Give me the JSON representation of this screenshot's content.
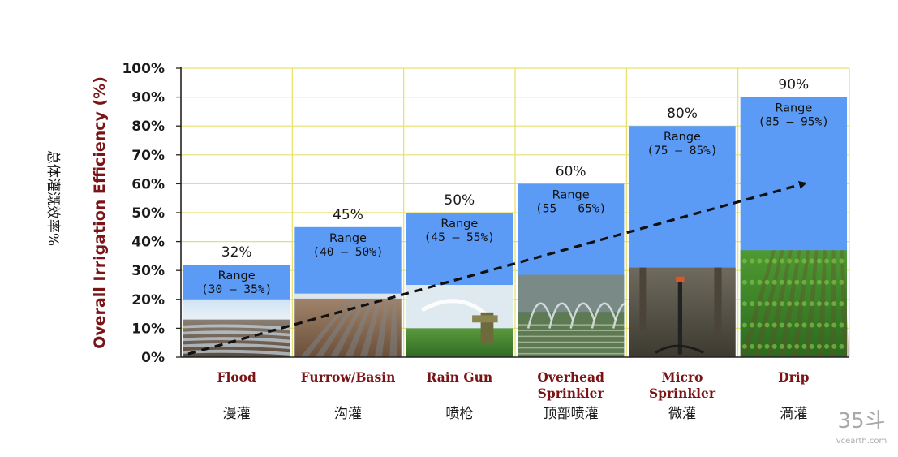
{
  "chart_data": {
    "type": "bar",
    "ylabel": "Overall Irrigation Efficiency (%)",
    "ylabel_cn": "总体灌溉效率%",
    "ylim": [
      0,
      100
    ],
    "yticks": [
      "0%",
      "10%",
      "20%",
      "30%",
      "40%",
      "50%",
      "60%",
      "70%",
      "80%",
      "90%",
      "100%"
    ],
    "grid": true,
    "bar_color": "#5b9bf5",
    "grid_color": "#e6e06a",
    "trend_arrow": "dashed black arrow rising from Flood to Drip",
    "categories": [
      {
        "name": "Flood",
        "name_lines": [
          "Flood"
        ],
        "cn": "漫灌",
        "value": 32,
        "value_label": "32%",
        "range_label": "Range",
        "range": "(30 – 35%)",
        "photo_top": 20,
        "photo": "flooded-field-photo"
      },
      {
        "name": "Furrow/Basin",
        "name_lines": [
          "Furrow/Basin"
        ],
        "cn": "沟灌",
        "value": 45,
        "value_label": "45%",
        "range_label": "Range",
        "range": "(40 – 50%)",
        "photo_top": 22,
        "photo": "furrow-field-photo"
      },
      {
        "name": "Rain Gun",
        "name_lines": [
          "Rain Gun"
        ],
        "cn": "喷枪",
        "value": 50,
        "value_label": "50%",
        "range_label": "Range",
        "range": "(45 – 55%)",
        "photo_top": 25,
        "photo": "rain-gun-photo"
      },
      {
        "name": "Overhead Sprinkler",
        "name_lines": [
          "Overhead",
          "Sprinkler"
        ],
        "cn": "顶部喷灌",
        "value": 60,
        "value_label": "60%",
        "range_label": "Range",
        "range": "(55 – 65%)",
        "photo_top": 28.5,
        "photo": "sprinkler-field-photo"
      },
      {
        "name": "Micro Sprinkler",
        "name_lines": [
          "Micro",
          "Sprinkler"
        ],
        "cn": "微灌",
        "value": 80,
        "value_label": "80%",
        "range_label": "Range",
        "range": "(75 – 85%)",
        "photo_top": 31,
        "photo": "micro-sprinkler-photo"
      },
      {
        "name": "Drip",
        "name_lines": [
          "Drip"
        ],
        "cn": "滴灌",
        "value": 90,
        "value_label": "90%",
        "range_label": "Range",
        "range": "(85 – 95%)",
        "photo_top": 37,
        "photo": "drip-crop-photo"
      }
    ]
  },
  "watermark": {
    "logo": "35斗",
    "url": "vcearth.com"
  }
}
